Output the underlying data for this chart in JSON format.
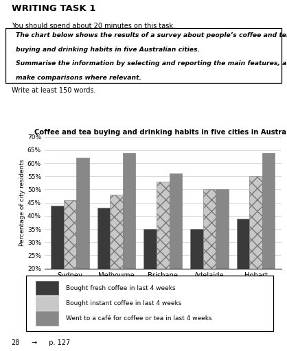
{
  "title": "Coffee and tea buying and drinking habits in five cities in Australia",
  "cities": [
    "Sydney",
    "Melbourne",
    "Brisbane",
    "Adelaide",
    "Hobart"
  ],
  "series": [
    {
      "label": "Bought fresh coffee in last 4 weeks",
      "values": [
        44,
        43,
        35,
        35,
        39
      ],
      "color": "#3a3a3a",
      "hatch": ""
    },
    {
      "label": "Bought instant coffee in last 4 weeks",
      "values": [
        46,
        48,
        53,
        50,
        55
      ],
      "color": "#c8c8c8",
      "hatch": "xx"
    },
    {
      "label": "Went to a café for coffee or tea in last 4 weeks",
      "values": [
        62,
        64,
        56,
        50,
        64
      ],
      "color": "#888888",
      "hatch": ""
    }
  ],
  "ylim": [
    20,
    70
  ],
  "yticks": [
    20,
    25,
    30,
    35,
    40,
    45,
    50,
    55,
    60,
    65,
    70
  ],
  "ylabel": "Percentage of city residents",
  "heading": "WRITING TASK 1",
  "subheading": "You should spend about 20 minutes on this task.",
  "box_bold1": "The chart below shows the results of a survey about people’s coffee and tea",
  "box_bold2": "buying and drinking habits in five Australian cities.",
  "box_italic1": "Summarise the information by selecting and reporting the main features, and",
  "box_italic2": "make comparisons where relevant.",
  "write_prompt": "Write at least 150 words.",
  "footer_num": "28",
  "footer_rest": "  p. 127",
  "background_color": "#ffffff"
}
